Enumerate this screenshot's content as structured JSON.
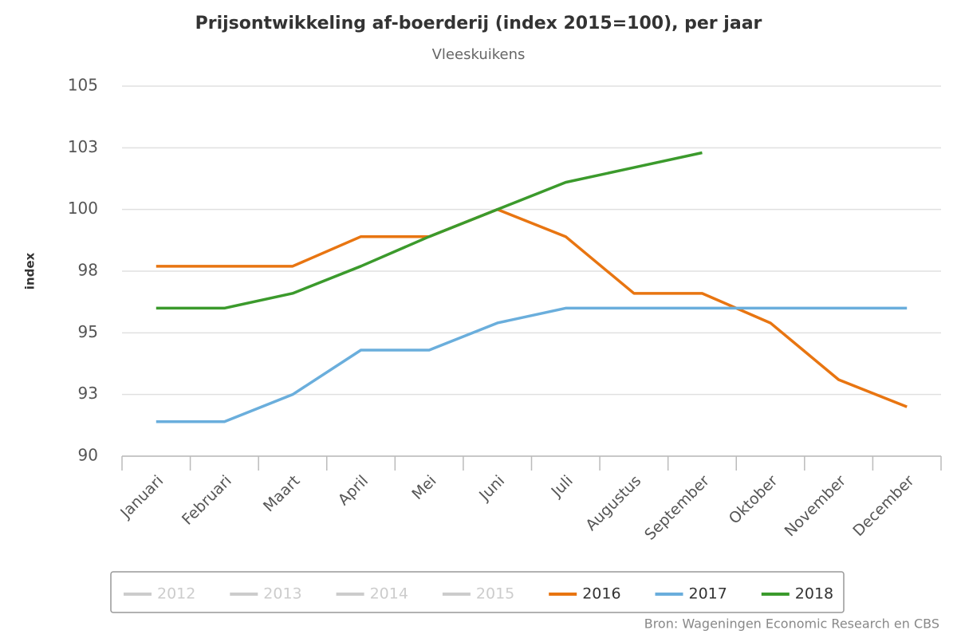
{
  "chart_data": {
    "type": "line",
    "title": "Prijsontwikkeling af-boerderij (index 2015=100), per jaar",
    "subtitle": "Vleeskuikens",
    "y_label": "index",
    "source": "Bron: Wageningen Economic Research en CBS",
    "categories": [
      "Januari",
      "Februari",
      "Maart",
      "April",
      "Mei",
      "Juni",
      "Juli",
      "Augustus",
      "September",
      "Oktober",
      "November",
      "December"
    ],
    "series": [
      {
        "name": "2012",
        "color": "#cccccc",
        "visible": false,
        "values": [
          null,
          null,
          null,
          null,
          null,
          null,
          null,
          null,
          null,
          null,
          null,
          null
        ]
      },
      {
        "name": "2013",
        "color": "#cccccc",
        "visible": false,
        "values": [
          null,
          null,
          null,
          null,
          null,
          null,
          null,
          null,
          null,
          null,
          null,
          null
        ]
      },
      {
        "name": "2014",
        "color": "#cccccc",
        "visible": false,
        "values": [
          null,
          null,
          null,
          null,
          null,
          null,
          null,
          null,
          null,
          null,
          null,
          null
        ]
      },
      {
        "name": "2015",
        "color": "#cccccc",
        "visible": false,
        "values": [
          null,
          null,
          null,
          null,
          null,
          null,
          null,
          null,
          null,
          null,
          null,
          null
        ]
      },
      {
        "name": "2016",
        "color": "#e87511",
        "visible": true,
        "values": [
          97.7,
          97.7,
          97.7,
          98.9,
          98.9,
          100,
          98.9,
          96.6,
          96.6,
          95.4,
          93.1,
          92.0
        ]
      },
      {
        "name": "2017",
        "color": "#6aaedc",
        "visible": true,
        "values": [
          91.4,
          91.4,
          92.5,
          94.3,
          94.3,
          95.4,
          96.0,
          96.0,
          96.0,
          96.0,
          96.0,
          96.0
        ]
      },
      {
        "name": "2018",
        "color": "#3b9a2c",
        "visible": true,
        "values": [
          96.0,
          96.0,
          96.6,
          97.7,
          98.9,
          100,
          101.1,
          101.7,
          102.3,
          null,
          null,
          null
        ]
      }
    ],
    "ylim": [
      90,
      105
    ],
    "yticks": [
      90,
      {
        "value": 92.5,
        "label": "93"
      },
      95,
      {
        "value": 97.5,
        "label": "98"
      },
      100,
      {
        "value": 102.5,
        "label": "103"
      },
      105
    ],
    "grid": true
  }
}
